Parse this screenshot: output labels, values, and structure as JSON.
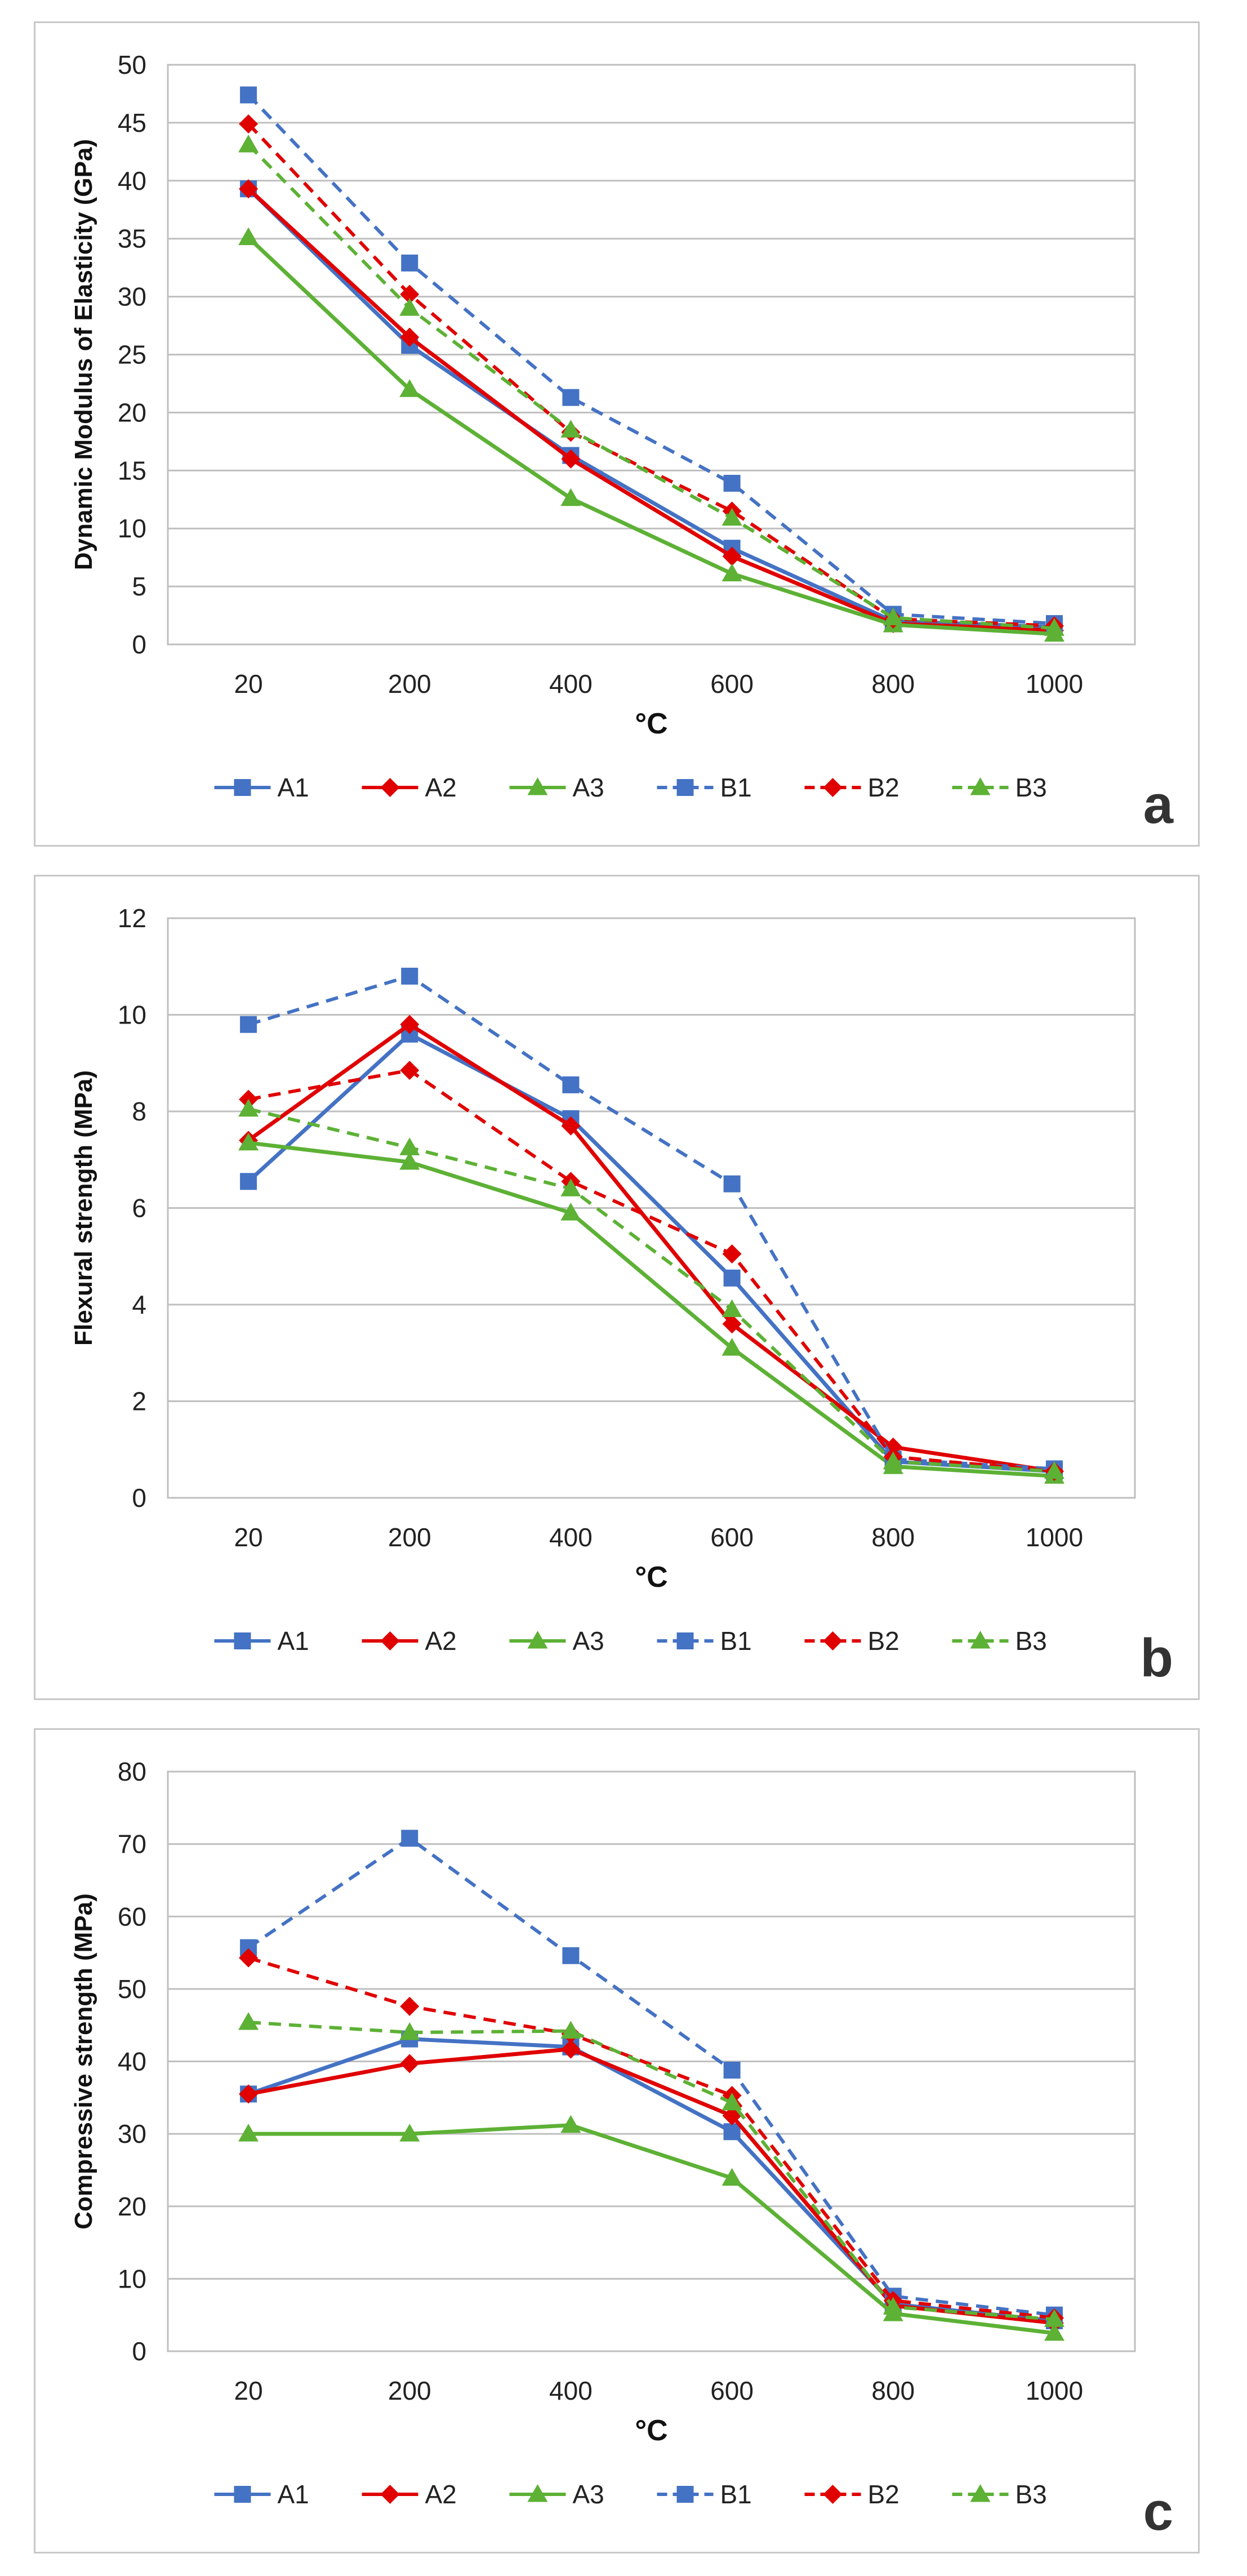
{
  "chart_data": [
    {
      "type": "line",
      "panel_letter": "a",
      "title": "",
      "xlabel": "°C",
      "ylabel": "Dynamic Modulus of Elasticity (GPa)",
      "categories": [
        "20",
        "200",
        "400",
        "600",
        "800",
        "1000"
      ],
      "ylim": [
        0,
        50
      ],
      "yticks": [
        0,
        5,
        10,
        15,
        20,
        25,
        30,
        35,
        40,
        45,
        50
      ],
      "legend_position": "bottom",
      "series": [
        {
          "name": "A1",
          "color": "#4472C4",
          "style": "solid",
          "marker": "square",
          "values": [
            39.3,
            25.8,
            16.3,
            8.3,
            2.0,
            1.5
          ]
        },
        {
          "name": "A2",
          "color": "#E00000",
          "style": "solid",
          "marker": "diamond",
          "values": [
            39.3,
            26.5,
            16.0,
            7.6,
            1.8,
            1.2
          ]
        },
        {
          "name": "A3",
          "color": "#5DB135",
          "style": "solid",
          "marker": "triangle",
          "values": [
            35.1,
            22.0,
            12.6,
            6.1,
            1.7,
            0.9
          ]
        },
        {
          "name": "B1",
          "color": "#4472C4",
          "style": "dashed",
          "marker": "square",
          "values": [
            47.4,
            32.9,
            21.3,
            13.9,
            2.6,
            1.8
          ]
        },
        {
          "name": "B2",
          "color": "#E00000",
          "style": "dashed",
          "marker": "diamond",
          "values": [
            44.9,
            30.2,
            18.3,
            11.5,
            2.2,
            1.6
          ]
        },
        {
          "name": "B3",
          "color": "#5DB135",
          "style": "dashed",
          "marker": "triangle",
          "values": [
            43.1,
            29.0,
            18.5,
            10.9,
            2.3,
            1.4
          ]
        }
      ]
    },
    {
      "type": "line",
      "panel_letter": "b",
      "title": "",
      "xlabel": "°C",
      "ylabel": "Flexural strength (MPa)",
      "categories": [
        "20",
        "200",
        "400",
        "600",
        "800",
        "1000"
      ],
      "ylim": [
        0,
        12
      ],
      "yticks": [
        0,
        2,
        4,
        6,
        8,
        10,
        12
      ],
      "legend_position": "bottom",
      "series": [
        {
          "name": "A1",
          "color": "#4472C4",
          "style": "solid",
          "marker": "square",
          "values": [
            6.55,
            9.6,
            7.85,
            4.55,
            0.75,
            0.55
          ]
        },
        {
          "name": "A2",
          "color": "#E00000",
          "style": "solid",
          "marker": "diamond",
          "values": [
            7.4,
            9.8,
            7.7,
            3.6,
            1.05,
            0.55
          ]
        },
        {
          "name": "A3",
          "color": "#5DB135",
          "style": "solid",
          "marker": "triangle",
          "values": [
            7.35,
            6.95,
            5.9,
            3.1,
            0.65,
            0.45
          ]
        },
        {
          "name": "B1",
          "color": "#4472C4",
          "style": "dashed",
          "marker": "square",
          "values": [
            9.8,
            10.8,
            8.55,
            6.5,
            0.8,
            0.6
          ]
        },
        {
          "name": "B2",
          "color": "#E00000",
          "style": "dashed",
          "marker": "diamond",
          "values": [
            8.25,
            8.85,
            6.55,
            5.05,
            0.85,
            0.55
          ]
        },
        {
          "name": "B3",
          "color": "#5DB135",
          "style": "dashed",
          "marker": "triangle",
          "values": [
            8.05,
            7.25,
            6.4,
            3.9,
            0.75,
            0.55
          ]
        }
      ]
    },
    {
      "type": "line",
      "panel_letter": "c",
      "title": "",
      "xlabel": "°C",
      "ylabel": "Compressive strength (MPa)",
      "categories": [
        "20",
        "200",
        "400",
        "600",
        "800",
        "1000"
      ],
      "ylim": [
        0,
        80
      ],
      "yticks": [
        0,
        10,
        20,
        30,
        40,
        50,
        60,
        70,
        80
      ],
      "legend_position": "bottom",
      "series": [
        {
          "name": "A1",
          "color": "#4472C4",
          "style": "solid",
          "marker": "square",
          "values": [
            35.5,
            43.1,
            42.0,
            30.3,
            6.5,
            4.2
          ]
        },
        {
          "name": "A2",
          "color": "#E00000",
          "style": "solid",
          "marker": "diamond",
          "values": [
            35.5,
            39.7,
            41.7,
            32.5,
            6.3,
            3.9
          ]
        },
        {
          "name": "A3",
          "color": "#5DB135",
          "style": "solid",
          "marker": "triangle",
          "values": [
            30.0,
            30.0,
            31.2,
            23.9,
            5.2,
            2.5
          ]
        },
        {
          "name": "B1",
          "color": "#4472C4",
          "style": "dashed",
          "marker": "square",
          "values": [
            55.7,
            70.8,
            54.6,
            38.8,
            7.6,
            5.0
          ]
        },
        {
          "name": "B2",
          "color": "#E00000",
          "style": "dashed",
          "marker": "diamond",
          "values": [
            54.3,
            47.6,
            43.8,
            35.3,
            7.0,
            4.6
          ]
        },
        {
          "name": "B3",
          "color": "#5DB135",
          "style": "dashed",
          "marker": "triangle",
          "values": [
            45.4,
            44.0,
            44.2,
            34.3,
            6.1,
            4.4
          ]
        }
      ]
    }
  ]
}
